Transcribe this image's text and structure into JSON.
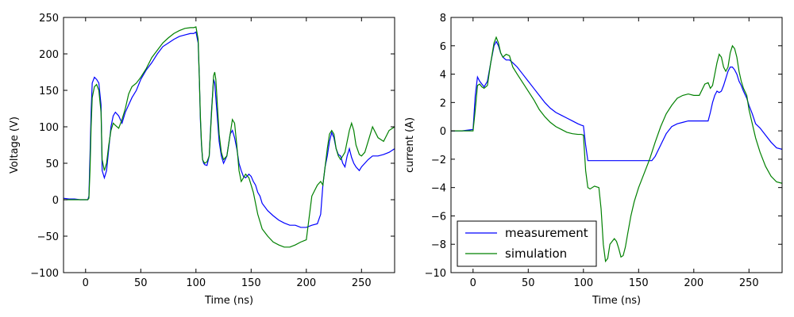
{
  "chart_data": [
    {
      "type": "line",
      "xlabel": "Time (ns)",
      "ylabel": "Voltage (V)",
      "xlim": [
        -20,
        280
      ],
      "ylim": [
        -100,
        250
      ],
      "xticks": [
        0,
        50,
        100,
        150,
        200,
        250
      ],
      "yticks": [
        -100,
        -50,
        0,
        50,
        100,
        150,
        200,
        250
      ],
      "grid": false,
      "series": [
        {
          "color": "#0000ff",
          "x": [
            -20,
            -15,
            -10,
            -5,
            0,
            2,
            3,
            4,
            5,
            6,
            8,
            10,
            12,
            14,
            15,
            17,
            19,
            21,
            23,
            25,
            27,
            30,
            33,
            36,
            39,
            42,
            46,
            50,
            55,
            60,
            65,
            70,
            75,
            80,
            85,
            90,
            95,
            98,
            100,
            102,
            103,
            104,
            105,
            106,
            107,
            108,
            110,
            112,
            114,
            116,
            117,
            118,
            119,
            120,
            121,
            123,
            125,
            128,
            131,
            133,
            135,
            137,
            139,
            141,
            143,
            145,
            148,
            150,
            152,
            154,
            156,
            158,
            160,
            165,
            170,
            175,
            180,
            185,
            190,
            195,
            200,
            205,
            210,
            213,
            215,
            217,
            219,
            221,
            223,
            225,
            227,
            229,
            231,
            233,
            235,
            237,
            239,
            241,
            243,
            245,
            248,
            250,
            253,
            256,
            260,
            265,
            270,
            275,
            280
          ],
          "y": [
            2,
            1,
            1,
            0,
            0,
            0,
            5,
            60,
            120,
            160,
            168,
            165,
            160,
            130,
            40,
            30,
            40,
            70,
            100,
            115,
            120,
            115,
            105,
            120,
            130,
            140,
            150,
            165,
            178,
            188,
            200,
            210,
            215,
            220,
            224,
            226,
            228,
            228,
            230,
            215,
            170,
            110,
            75,
            55,
            50,
            48,
            47,
            60,
            120,
            165,
            160,
            140,
            120,
            100,
            80,
            60,
            50,
            60,
            90,
            95,
            85,
            70,
            50,
            40,
            32,
            30,
            35,
            32,
            25,
            20,
            10,
            5,
            -5,
            -15,
            -22,
            -28,
            -32,
            -35,
            -35,
            -38,
            -38,
            -35,
            -33,
            -20,
            20,
            45,
            60,
            80,
            92,
            85,
            70,
            62,
            60,
            50,
            45,
            60,
            70,
            58,
            50,
            45,
            40,
            45,
            50,
            55,
            60,
            60,
            62,
            65,
            70
          ]
        },
        {
          "color": "#008000",
          "x": [
            -20,
            -15,
            -10,
            -5,
            0,
            2,
            3,
            4,
            5,
            6,
            8,
            10,
            12,
            14,
            15,
            17,
            19,
            21,
            23,
            25,
            27,
            30,
            33,
            36,
            39,
            42,
            46,
            50,
            55,
            60,
            65,
            70,
            75,
            80,
            85,
            90,
            95,
            98,
            100,
            102,
            103,
            104,
            105,
            106,
            107,
            108,
            110,
            112,
            114,
            116,
            117,
            118,
            119,
            120,
            121,
            123,
            125,
            128,
            131,
            133,
            135,
            137,
            139,
            141,
            143,
            145,
            148,
            150,
            152,
            154,
            156,
            158,
            160,
            165,
            170,
            175,
            180,
            185,
            190,
            195,
            200,
            205,
            210,
            213,
            215,
            217,
            219,
            221,
            223,
            225,
            227,
            229,
            231,
            233,
            235,
            237,
            239,
            241,
            243,
            245,
            248,
            250,
            253,
            256,
            260,
            265,
            270,
            275,
            280
          ],
          "y": [
            0,
            0,
            0,
            0,
            0,
            0,
            2,
            40,
            100,
            140,
            155,
            158,
            150,
            120,
            55,
            40,
            50,
            75,
            95,
            105,
            102,
            98,
            110,
            125,
            145,
            155,
            160,
            168,
            180,
            195,
            205,
            215,
            222,
            228,
            232,
            235,
            236,
            236,
            237,
            220,
            170,
            115,
            78,
            55,
            52,
            50,
            52,
            60,
            115,
            170,
            175,
            165,
            140,
            115,
            90,
            65,
            55,
            60,
            90,
            110,
            105,
            75,
            40,
            25,
            30,
            35,
            30,
            20,
            10,
            -5,
            -20,
            -30,
            -40,
            -50,
            -58,
            -62,
            -65,
            -65,
            -62,
            -58,
            -55,
            5,
            20,
            25,
            20,
            45,
            70,
            90,
            95,
            90,
            70,
            60,
            55,
            60,
            65,
            80,
            95,
            105,
            95,
            75,
            62,
            60,
            65,
            80,
            100,
            85,
            80,
            95,
            100
          ]
        }
      ]
    },
    {
      "type": "line",
      "xlabel": "Time (ns)",
      "ylabel": "current (A)",
      "xlim": [
        -20,
        280
      ],
      "ylim": [
        -10,
        8
      ],
      "xticks": [
        0,
        50,
        100,
        150,
        200,
        250
      ],
      "yticks": [
        -10,
        -8,
        -6,
        -4,
        -2,
        0,
        2,
        4,
        6,
        8
      ],
      "grid": false,
      "legend": {
        "position": "lower-left",
        "entries": [
          "measurement",
          "simulation"
        ]
      },
      "series": [
        {
          "name": "measurement",
          "color": "#0000ff",
          "x": [
            -20,
            -10,
            0,
            2,
            4,
            6,
            8,
            10,
            13,
            16,
            19,
            21,
            23,
            25,
            27,
            30,
            33,
            36,
            40,
            45,
            50,
            55,
            60,
            65,
            70,
            75,
            80,
            85,
            90,
            95,
            98,
            100,
            102,
            104,
            106,
            110,
            120,
            130,
            140,
            150,
            160,
            162,
            165,
            170,
            175,
            180,
            185,
            190,
            195,
            200,
            205,
            210,
            213,
            215,
            217,
            219,
            221,
            223,
            225,
            227,
            229,
            231,
            233,
            235,
            237,
            239,
            241,
            243,
            245,
            248,
            250,
            253,
            256,
            260,
            265,
            270,
            275,
            280
          ],
          "y": [
            0,
            0,
            0.1,
            2.5,
            3.8,
            3.5,
            3.3,
            3.1,
            3.5,
            4.8,
            6.0,
            6.3,
            6.0,
            5.5,
            5.2,
            5.0,
            5.0,
            4.8,
            4.5,
            4.0,
            3.5,
            3.0,
            2.5,
            2.0,
            1.6,
            1.3,
            1.1,
            0.9,
            0.7,
            0.5,
            0.4,
            0.35,
            -1.0,
            -2.1,
            -2.1,
            -2.1,
            -2.1,
            -2.1,
            -2.1,
            -2.1,
            -2.1,
            -2.1,
            -1.8,
            -1.0,
            -0.2,
            0.3,
            0.5,
            0.6,
            0.7,
            0.7,
            0.7,
            0.7,
            0.7,
            1.3,
            2.0,
            2.5,
            2.8,
            2.7,
            2.8,
            3.2,
            3.7,
            4.2,
            4.5,
            4.5,
            4.3,
            4.0,
            3.5,
            3.2,
            2.8,
            2.3,
            1.8,
            1.2,
            0.5,
            0.2,
            -0.3,
            -0.8,
            -1.2,
            -1.3
          ]
        },
        {
          "name": "simulation",
          "color": "#008000",
          "x": [
            -20,
            -10,
            0,
            2,
            4,
            6,
            8,
            10,
            13,
            16,
            19,
            21,
            23,
            25,
            27,
            30,
            33,
            36,
            40,
            45,
            50,
            55,
            60,
            65,
            70,
            75,
            80,
            85,
            90,
            95,
            98,
            100,
            102,
            104,
            106,
            110,
            114,
            116,
            118,
            120,
            122,
            124,
            126,
            128,
            130,
            132,
            134,
            136,
            138,
            140,
            143,
            146,
            150,
            155,
            160,
            165,
            170,
            175,
            180,
            185,
            190,
            195,
            200,
            205,
            210,
            213,
            215,
            217,
            219,
            221,
            223,
            225,
            227,
            229,
            231,
            233,
            235,
            237,
            239,
            241,
            243,
            245,
            248,
            250,
            253,
            256,
            260,
            265,
            270,
            275,
            280
          ],
          "y": [
            0,
            0,
            0,
            1.5,
            3.2,
            3.3,
            3.1,
            3.0,
            3.2,
            4.8,
            6.2,
            6.6,
            6.2,
            5.5,
            5.2,
            5.4,
            5.3,
            4.5,
            4.0,
            3.4,
            2.8,
            2.2,
            1.5,
            1.0,
            0.6,
            0.3,
            0.1,
            -0.1,
            -0.2,
            -0.25,
            -0.25,
            -0.3,
            -2.8,
            -4.0,
            -4.1,
            -3.9,
            -4.0,
            -5.5,
            -8.0,
            -9.2,
            -9.0,
            -8.0,
            -7.8,
            -7.6,
            -7.8,
            -8.3,
            -8.9,
            -8.8,
            -8.2,
            -7.3,
            -6.0,
            -5.0,
            -4.0,
            -3.0,
            -2.0,
            -0.8,
            0.3,
            1.2,
            1.8,
            2.3,
            2.5,
            2.6,
            2.5,
            2.5,
            3.3,
            3.4,
            3.0,
            3.2,
            4.0,
            4.8,
            5.4,
            5.2,
            4.5,
            4.2,
            4.5,
            5.5,
            6.0,
            5.8,
            5.2,
            4.2,
            3.5,
            3.0,
            2.5,
            1.5,
            0.5,
            -0.5,
            -1.5,
            -2.5,
            -3.2,
            -3.6,
            -3.7
          ]
        }
      ]
    }
  ]
}
